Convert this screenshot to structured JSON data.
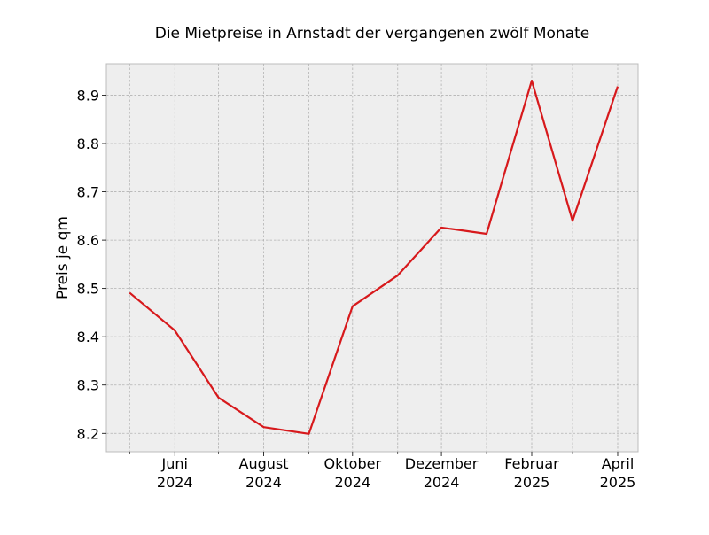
{
  "chart_data": {
    "type": "line",
    "title": "Die Mietpreise in Arnstadt der vergangenen zwölf Monate",
    "ylabel": "Preis je qm",
    "x": [
      "2024-05",
      "2024-06",
      "2024-07",
      "2024-08",
      "2024-09",
      "2024-10",
      "2024-11",
      "2024-12",
      "2025-01",
      "2025-02",
      "2025-03",
      "2025-04"
    ],
    "xticks": [
      {
        "x": "2024-06",
        "month": "Juni",
        "year": "2024"
      },
      {
        "x": "2024-08",
        "month": "August",
        "year": "2024"
      },
      {
        "x": "2024-10",
        "month": "Oktober",
        "year": "2024"
      },
      {
        "x": "2024-12",
        "month": "Dezember",
        "year": "2024"
      },
      {
        "x": "2025-02",
        "month": "Februar",
        "year": "2025"
      },
      {
        "x": "2025-04",
        "month": "April",
        "year": "2025"
      }
    ],
    "minor_xticks": [
      "2024-05",
      "2024-07",
      "2024-09",
      "2024-11",
      "2025-01",
      "2025-03"
    ],
    "xlim": [
      "2024-04-15",
      "2025-04-15"
    ],
    "yticks": [
      "8.2",
      "8.3",
      "8.4",
      "8.5",
      "8.6",
      "8.7",
      "8.8",
      "8.9"
    ],
    "ylim": [
      8.162,
      8.965
    ],
    "series": [
      {
        "color": "#d7191c",
        "values": [
          8.491,
          8.413,
          8.274,
          8.213,
          8.199,
          8.463,
          8.527,
          8.626,
          8.613,
          8.93,
          8.64,
          8.918
        ]
      }
    ],
    "grid": true,
    "background": "#eeeeee"
  }
}
